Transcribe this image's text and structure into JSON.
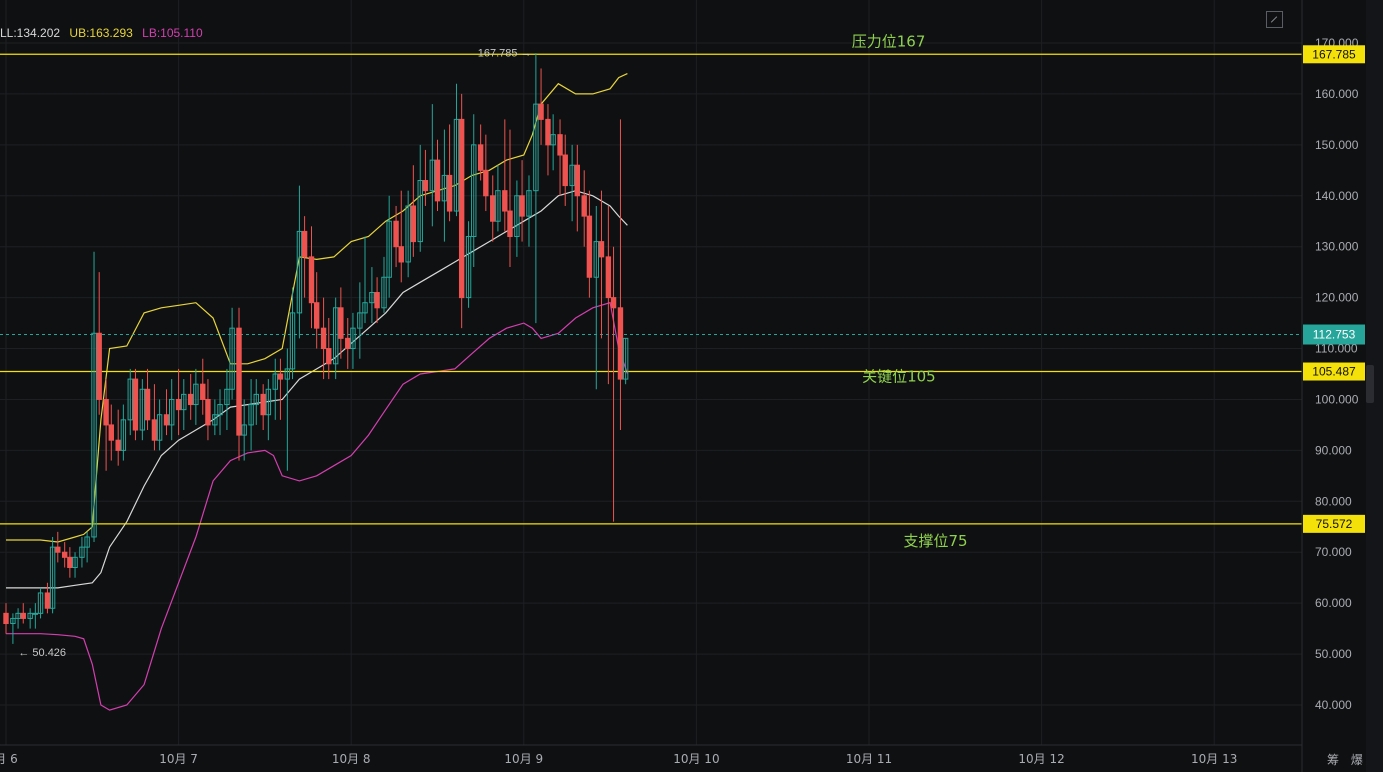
{
  "legend": {
    "ml_label": "LL:134.202",
    "ub_label": "UB:163.293",
    "lb_label": "LB:105.110"
  },
  "colors": {
    "background": "#0f1012",
    "grid": "#1d1f23",
    "up_candle": "#26a69a",
    "down_candle": "#ef5350",
    "upper_band": "#e8d43a",
    "middle_band": "#d8d8d8",
    "lower_band": "#d43fb0",
    "level_line": "#f5e10a",
    "annotation_text": "#8fd14f",
    "axis_text": "#a9acb2",
    "last_price_tag": "#26a69a"
  },
  "bottom_right": {
    "btn1": "筹",
    "btn2": "爆"
  },
  "chart_data": {
    "type": "candlestick",
    "ylim": [
      32,
      176
    ],
    "y_ticks": [
      40,
      50,
      60,
      70,
      80,
      90,
      100,
      110,
      120,
      130,
      140,
      150,
      160,
      170
    ],
    "y_tick_labels": [
      "40.000",
      "50.000",
      "60.000",
      "70.000",
      "80.000",
      "90.000",
      "100.000",
      "110.000",
      "120.000",
      "130.000",
      "140.000",
      "150.000",
      "160.000",
      "170.000"
    ],
    "x_ticks": [
      {
        "day": 6,
        "label": "月 6"
      },
      {
        "day": 7,
        "label": "10月 7"
      },
      {
        "day": 8,
        "label": "10月 8"
      },
      {
        "day": 9,
        "label": "10月 9"
      },
      {
        "day": 10,
        "label": "10月 10"
      },
      {
        "day": 11,
        "label": "10月 11"
      },
      {
        "day": 12,
        "label": "10月 12"
      },
      {
        "day": 13,
        "label": "10月 13"
      }
    ],
    "high_marker": {
      "day": 9.08,
      "value": 167.785,
      "label": "167.785 →"
    },
    "low_marker": {
      "day": 6.06,
      "value": 50.426,
      "label": "← 50.426"
    },
    "levels": [
      {
        "value": 167.785,
        "tag": "167.785",
        "annotation": "压力位167",
        "annot_day": 10.9
      },
      {
        "value": 105.487,
        "tag": "105.487",
        "annotation": "关键位105",
        "annot_day": 10.96
      },
      {
        "value": 75.572,
        "tag": "75.572",
        "annotation": "支撑位75",
        "annot_day": 11.2
      }
    ],
    "last_price": {
      "value": 112.753,
      "tag": "112.753"
    },
    "candles": [
      [
        6.0,
        58,
        60,
        54,
        56
      ],
      [
        6.04,
        56,
        58,
        52,
        57
      ],
      [
        6.07,
        57,
        59,
        55,
        58
      ],
      [
        6.1,
        58,
        60,
        56,
        57
      ],
      [
        6.14,
        57,
        59,
        55,
        58
      ],
      [
        6.17,
        58,
        60,
        55,
        58
      ],
      [
        6.2,
        58,
        63,
        57,
        62
      ],
      [
        6.24,
        62,
        64,
        58,
        59
      ],
      [
        6.27,
        59,
        73,
        58,
        71
      ],
      [
        6.3,
        71,
        74,
        68,
        70
      ],
      [
        6.34,
        70,
        72,
        67,
        69
      ],
      [
        6.37,
        69,
        71,
        65,
        67
      ],
      [
        6.4,
        67,
        70,
        65,
        69
      ],
      [
        6.44,
        69,
        73,
        67,
        71
      ],
      [
        6.47,
        71,
        74,
        68,
        73
      ],
      [
        6.51,
        73,
        129,
        72,
        113
      ],
      [
        6.54,
        113,
        125,
        97,
        100
      ],
      [
        6.58,
        100,
        104,
        86,
        95
      ],
      [
        6.61,
        95,
        99,
        88,
        92
      ],
      [
        6.65,
        92,
        98,
        87,
        90
      ],
      [
        6.68,
        90,
        99,
        88,
        96
      ],
      [
        6.72,
        96,
        106,
        93,
        104
      ],
      [
        6.75,
        104,
        106,
        92,
        94
      ],
      [
        6.79,
        94,
        104,
        92,
        102
      ],
      [
        6.82,
        102,
        106,
        94,
        96
      ],
      [
        6.86,
        96,
        103,
        90,
        92
      ],
      [
        6.89,
        92,
        100,
        90,
        97
      ],
      [
        6.93,
        97,
        102,
        93,
        95
      ],
      [
        6.96,
        95,
        104,
        92,
        100
      ],
      [
        7.0,
        100,
        106,
        93,
        98
      ],
      [
        7.03,
        98,
        104,
        94,
        101
      ],
      [
        7.07,
        101,
        105,
        96,
        99
      ],
      [
        7.1,
        99,
        106,
        95,
        103
      ],
      [
        7.14,
        103,
        108,
        97,
        100
      ],
      [
        7.17,
        100,
        104,
        92,
        95
      ],
      [
        7.21,
        95,
        100,
        93,
        97
      ],
      [
        7.24,
        97,
        102,
        93,
        99
      ],
      [
        7.28,
        99,
        106,
        94,
        102
      ],
      [
        7.31,
        102,
        118,
        100,
        114
      ],
      [
        7.35,
        114,
        118,
        88,
        93
      ],
      [
        7.38,
        93,
        100,
        88,
        95
      ],
      [
        7.42,
        95,
        104,
        90,
        99
      ],
      [
        7.45,
        99,
        104,
        95,
        101
      ],
      [
        7.49,
        101,
        103,
        94,
        97
      ],
      [
        7.52,
        97,
        104,
        92,
        102
      ],
      [
        7.56,
        102,
        108,
        96,
        105
      ],
      [
        7.59,
        105,
        108,
        96,
        104
      ],
      [
        7.63,
        104,
        110,
        86,
        106
      ],
      [
        7.66,
        106,
        122,
        104,
        117
      ],
      [
        7.7,
        117,
        142,
        112,
        133
      ],
      [
        7.73,
        133,
        136,
        120,
        128
      ],
      [
        7.77,
        128,
        134,
        114,
        119
      ],
      [
        7.8,
        119,
        125,
        110,
        114
      ],
      [
        7.84,
        114,
        120,
        104,
        110
      ],
      [
        7.87,
        110,
        116,
        104,
        107
      ],
      [
        7.91,
        107,
        120,
        104,
        118
      ],
      [
        7.94,
        118,
        122,
        108,
        112
      ],
      [
        7.98,
        112,
        116,
        106,
        110
      ],
      [
        8.01,
        110,
        117,
        106,
        114
      ],
      [
        8.05,
        114,
        123,
        108,
        117
      ],
      [
        8.08,
        117,
        132,
        115,
        119
      ],
      [
        8.12,
        119,
        126,
        115,
        121
      ],
      [
        8.15,
        121,
        124,
        115,
        118
      ],
      [
        8.19,
        118,
        128,
        117,
        124
      ],
      [
        8.22,
        124,
        140,
        120,
        135
      ],
      [
        8.26,
        135,
        138,
        126,
        130
      ],
      [
        8.29,
        130,
        141,
        123,
        127
      ],
      [
        8.33,
        127,
        141,
        124,
        138
      ],
      [
        8.36,
        138,
        146,
        128,
        131
      ],
      [
        8.4,
        131,
        150,
        129,
        143
      ],
      [
        8.43,
        143,
        149,
        138,
        141
      ],
      [
        8.47,
        141,
        158,
        134,
        147
      ],
      [
        8.5,
        147,
        151,
        137,
        139
      ],
      [
        8.54,
        139,
        153,
        131,
        144
      ],
      [
        8.57,
        144,
        154,
        135,
        137
      ],
      [
        8.61,
        137,
        162,
        136,
        155
      ],
      [
        8.64,
        155,
        160,
        114,
        120
      ],
      [
        8.68,
        120,
        135,
        118,
        132
      ],
      [
        8.71,
        132,
        156,
        126,
        150
      ],
      [
        8.75,
        150,
        154,
        143,
        145
      ],
      [
        8.78,
        145,
        152,
        137,
        140
      ],
      [
        8.82,
        140,
        144,
        131,
        135
      ],
      [
        8.85,
        135,
        146,
        133,
        141
      ],
      [
        8.89,
        141,
        155,
        133,
        137
      ],
      [
        8.92,
        137,
        153,
        126,
        132
      ],
      [
        8.96,
        132,
        143,
        128,
        140
      ],
      [
        8.99,
        140,
        147,
        131,
        136
      ],
      [
        9.03,
        136,
        144,
        130,
        141
      ]
    ],
    "candles_tail": [
      [
        9.07,
        141,
        168,
        115,
        158
      ],
      [
        9.1,
        158,
        165,
        150,
        155
      ],
      [
        9.14,
        155,
        158,
        144,
        150
      ],
      [
        9.17,
        150,
        156,
        145,
        152
      ],
      [
        9.21,
        152,
        155,
        140,
        148
      ],
      [
        9.24,
        148,
        152,
        138,
        142
      ],
      [
        9.28,
        142,
        150,
        135,
        146
      ],
      [
        9.31,
        146,
        150,
        133,
        140
      ],
      [
        9.35,
        140,
        145,
        130,
        136
      ],
      [
        9.38,
        136,
        141,
        120,
        124
      ],
      [
        9.42,
        124,
        138,
        102,
        131
      ],
      [
        9.45,
        131,
        141,
        112,
        128
      ],
      [
        9.49,
        128,
        138,
        103,
        120
      ],
      [
        9.52,
        120,
        130,
        76,
        118
      ],
      [
        9.56,
        118,
        155,
        94,
        104
      ],
      [
        9.59,
        104,
        112,
        103,
        112
      ]
    ],
    "upper_band": [
      [
        6.0,
        72.4
      ],
      [
        6.1,
        72.4
      ],
      [
        6.2,
        72.4
      ],
      [
        6.3,
        72.0
      ],
      [
        6.4,
        73.0
      ],
      [
        6.45,
        73.5
      ],
      [
        6.5,
        75.0
      ],
      [
        6.55,
        96.0
      ],
      [
        6.6,
        110.0
      ],
      [
        6.7,
        110.5
      ],
      [
        6.8,
        117.0
      ],
      [
        6.9,
        118.0
      ],
      [
        7.0,
        118.5
      ],
      [
        7.1,
        119.0
      ],
      [
        7.2,
        116.0
      ],
      [
        7.3,
        107.0
      ],
      [
        7.4,
        107.0
      ],
      [
        7.5,
        108.0
      ],
      [
        7.6,
        110.0
      ],
      [
        7.7,
        128.0
      ],
      [
        7.8,
        127.5
      ],
      [
        7.9,
        128.0
      ],
      [
        8.0,
        131.0
      ],
      [
        8.1,
        132.0
      ],
      [
        8.2,
        135.0
      ],
      [
        8.3,
        137.0
      ],
      [
        8.4,
        140.0
      ],
      [
        8.5,
        141.0
      ],
      [
        8.6,
        142.0
      ],
      [
        8.7,
        144.0
      ],
      [
        8.8,
        145.0
      ],
      [
        8.9,
        147.0
      ],
      [
        9.0,
        148.0
      ],
      [
        9.05,
        152.0
      ],
      [
        9.1,
        158.0
      ],
      [
        9.2,
        162.0
      ],
      [
        9.3,
        160.0
      ],
      [
        9.4,
        160.0
      ],
      [
        9.5,
        161.0
      ],
      [
        9.55,
        163.2
      ],
      [
        9.6,
        164.0
      ]
    ],
    "middle_band": [
      [
        6.0,
        63.0
      ],
      [
        6.1,
        63.0
      ],
      [
        6.2,
        63.0
      ],
      [
        6.3,
        63.0
      ],
      [
        6.4,
        63.5
      ],
      [
        6.5,
        64.0
      ],
      [
        6.55,
        66.0
      ],
      [
        6.6,
        71.0
      ],
      [
        6.7,
        76.0
      ],
      [
        6.8,
        83.0
      ],
      [
        6.9,
        89.0
      ],
      [
        7.0,
        92.0
      ],
      [
        7.1,
        94.0
      ],
      [
        7.2,
        96.0
      ],
      [
        7.3,
        98.5
      ],
      [
        7.4,
        99.0
      ],
      [
        7.5,
        99.5
      ],
      [
        7.6,
        100.0
      ],
      [
        7.7,
        104.0
      ],
      [
        7.8,
        106.0
      ],
      [
        7.9,
        108.0
      ],
      [
        8.0,
        111.0
      ],
      [
        8.1,
        114.0
      ],
      [
        8.2,
        117.0
      ],
      [
        8.3,
        121.0
      ],
      [
        8.4,
        123.0
      ],
      [
        8.5,
        125.0
      ],
      [
        8.6,
        127.0
      ],
      [
        8.7,
        129.0
      ],
      [
        8.8,
        131.0
      ],
      [
        8.9,
        133.0
      ],
      [
        9.0,
        135.0
      ],
      [
        9.1,
        137.0
      ],
      [
        9.2,
        140.0
      ],
      [
        9.3,
        141.0
      ],
      [
        9.4,
        140.0
      ],
      [
        9.5,
        138.0
      ],
      [
        9.55,
        136.0
      ],
      [
        9.6,
        134.2
      ]
    ],
    "lower_band": [
      [
        6.0,
        54.0
      ],
      [
        6.1,
        54.0
      ],
      [
        6.2,
        54.0
      ],
      [
        6.3,
        53.8
      ],
      [
        6.4,
        53.5
      ],
      [
        6.45,
        53.0
      ],
      [
        6.5,
        48.0
      ],
      [
        6.55,
        40.0
      ],
      [
        6.6,
        39.0
      ],
      [
        6.7,
        40.0
      ],
      [
        6.8,
        44.0
      ],
      [
        6.9,
        55.0
      ],
      [
        7.0,
        64.0
      ],
      [
        7.1,
        73.0
      ],
      [
        7.2,
        84.0
      ],
      [
        7.3,
        88.0
      ],
      [
        7.4,
        89.5
      ],
      [
        7.5,
        90.0
      ],
      [
        7.55,
        89.0
      ],
      [
        7.6,
        85.0
      ],
      [
        7.7,
        84.0
      ],
      [
        7.8,
        85.0
      ],
      [
        7.9,
        87.0
      ],
      [
        8.0,
        89.0
      ],
      [
        8.1,
        93.0
      ],
      [
        8.2,
        98.0
      ],
      [
        8.3,
        103.0
      ],
      [
        8.4,
        105.0
      ],
      [
        8.5,
        105.5
      ],
      [
        8.6,
        106.0
      ],
      [
        8.7,
        109.0
      ],
      [
        8.8,
        112.0
      ],
      [
        8.9,
        114.0
      ],
      [
        9.0,
        115.0
      ],
      [
        9.05,
        114.0
      ],
      [
        9.1,
        112.0
      ],
      [
        9.2,
        113.0
      ],
      [
        9.3,
        116.0
      ],
      [
        9.4,
        118.0
      ],
      [
        9.5,
        119.0
      ],
      [
        9.55,
        110.0
      ],
      [
        9.6,
        105.1
      ]
    ]
  }
}
